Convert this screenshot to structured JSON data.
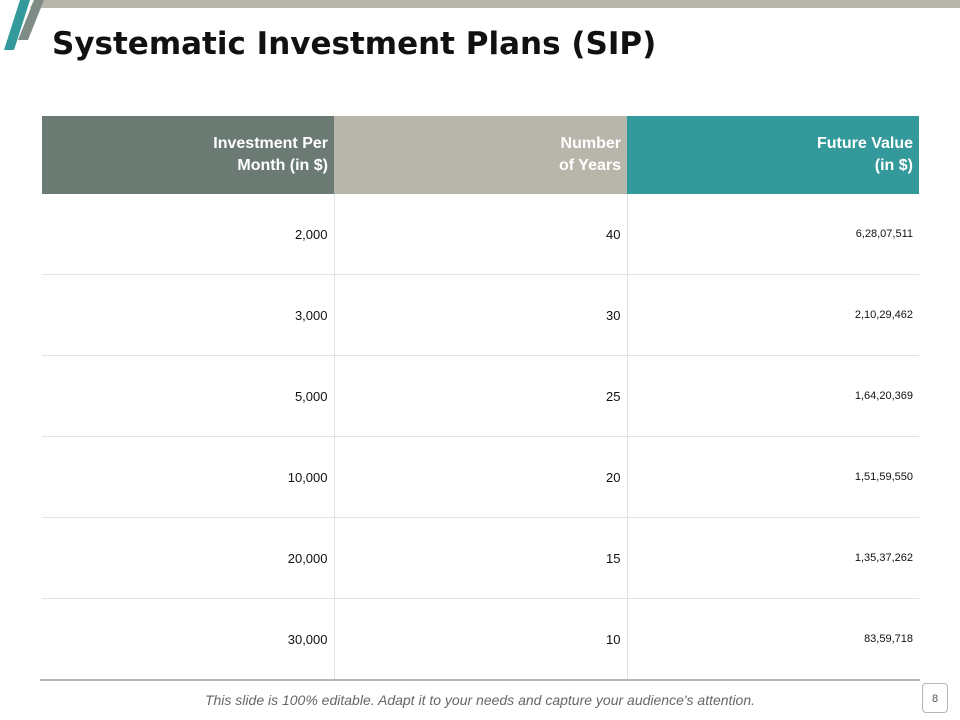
{
  "slide": {
    "title": "Systematic Investment Plans (SIP)",
    "footer_note": "This slide is 100% editable. Adapt it to your needs and capture your audience's attention.",
    "page_number": "8"
  },
  "table": {
    "headers": [
      [
        "Investment Per",
        "Month (in $)"
      ],
      [
        "Number",
        "of Years"
      ],
      [
        "Future Value",
        "(in $)"
      ]
    ],
    "rows": [
      [
        "2,000",
        "40",
        "6,28,07,511"
      ],
      [
        "3,000",
        "30",
        "2,10,29,462"
      ],
      [
        "5,000",
        "25",
        "1,64,20,369"
      ],
      [
        "10,000",
        "20",
        "1,51,59,550"
      ],
      [
        "20,000",
        "15",
        "1,35,37,262"
      ],
      [
        "30,000",
        "10",
        "83,59,718"
      ]
    ]
  },
  "colors": {
    "header_1": "#6b7b74",
    "header_2": "#b8b6aa",
    "header_3": "#33999a",
    "accent_teal": "#33999a",
    "accent_gray": "#b8b6aa"
  }
}
